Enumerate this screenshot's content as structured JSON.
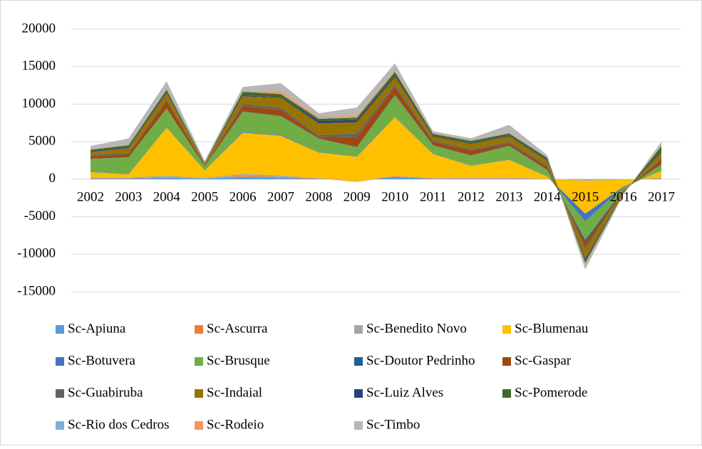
{
  "chart_data": {
    "type": "area",
    "stacked": true,
    "categories": [
      "2002",
      "2003",
      "2004",
      "2005",
      "2006",
      "2007",
      "2008",
      "2009",
      "2010",
      "2011",
      "2012",
      "2013",
      "2014",
      "2015",
      "2016",
      "2017"
    ],
    "ylim": [
      -15000,
      20000
    ],
    "yticks": [
      -15000,
      -10000,
      -5000,
      0,
      5000,
      10000,
      15000,
      20000
    ],
    "grid": true,
    "legend": "bottom",
    "series": [
      {
        "name": "Sc-Apiuna",
        "color": "#5b9bd5",
        "values": [
          100,
          100,
          200,
          100,
          300,
          200,
          50,
          50,
          300,
          50,
          50,
          50,
          20,
          -50,
          -20,
          50
        ]
      },
      {
        "name": "Sc-Ascurra",
        "color": "#ed7d31",
        "values": [
          50,
          50,
          50,
          20,
          100,
          100,
          50,
          -400,
          100,
          50,
          50,
          50,
          20,
          -50,
          -20,
          50
        ]
      },
      {
        "name": "Sc-Benedito Novo",
        "color": "#a5a5a5",
        "values": [
          100,
          100,
          200,
          50,
          300,
          200,
          50,
          50,
          50,
          50,
          100,
          100,
          20,
          -100,
          -50,
          100
        ]
      },
      {
        "name": "Sc-Blumenau",
        "color": "#ffc000",
        "values": [
          700,
          400,
          6400,
          1000,
          5500,
          5300,
          3400,
          3300,
          7800,
          3200,
          1600,
          2400,
          300,
          -4400,
          -900,
          900
        ]
      },
      {
        "name": "Sc-Botuvera",
        "color": "#4472c4",
        "values": [
          50,
          50,
          50,
          20,
          100,
          100,
          50,
          50,
          50,
          50,
          50,
          50,
          50,
          -1000,
          -100,
          50
        ]
      },
      {
        "name": "Sc-Brusque",
        "color": "#70ad47",
        "values": [
          1700,
          2200,
          2500,
          500,
          2700,
          2500,
          1800,
          1200,
          2900,
          1100,
          1300,
          1800,
          800,
          -2500,
          -300,
          800
        ]
      },
      {
        "name": "Sc-Doutor Pedrinho",
        "color": "#255e91",
        "values": [
          30,
          30,
          50,
          20,
          50,
          50,
          50,
          50,
          100,
          50,
          50,
          50,
          50,
          -300,
          -50,
          50
        ]
      },
      {
        "name": "Sc-Gaspar",
        "color": "#9e480e",
        "values": [
          300,
          400,
          1000,
          100,
          700,
          800,
          200,
          1300,
          1000,
          400,
          600,
          300,
          400,
          -700,
          -100,
          600
        ]
      },
      {
        "name": "Sc-Guabiruba",
        "color": "#636363",
        "values": [
          200,
          200,
          200,
          50,
          300,
          300,
          200,
          500,
          300,
          200,
          200,
          200,
          200,
          -300,
          -50,
          200
        ]
      },
      {
        "name": "Sc-Indaial",
        "color": "#997300",
        "values": [
          400,
          600,
          800,
          200,
          1000,
          1300,
          1600,
          1500,
          1000,
          500,
          700,
          700,
          600,
          -1200,
          -200,
          700
        ]
      },
      {
        "name": "Sc-Luiz Alves",
        "color": "#264478",
        "values": [
          100,
          100,
          100,
          30,
          100,
          100,
          300,
          300,
          200,
          100,
          100,
          100,
          100,
          -200,
          -50,
          100
        ]
      },
      {
        "name": "Sc-Pomerode",
        "color": "#43682b",
        "values": [
          200,
          300,
          400,
          100,
          500,
          400,
          300,
          300,
          500,
          300,
          300,
          300,
          300,
          -400,
          -100,
          800
        ]
      },
      {
        "name": "Sc-Rio dos Cedros",
        "color": "#7cafdd",
        "values": [
          50,
          50,
          50,
          20,
          50,
          50,
          50,
          50,
          50,
          50,
          50,
          50,
          20,
          -50,
          -20,
          50
        ]
      },
      {
        "name": "Sc-Rodeio",
        "color": "#f1975a",
        "values": [
          50,
          50,
          50,
          20,
          100,
          300,
          200,
          200,
          200,
          100,
          100,
          100,
          20,
          -100,
          -20,
          50
        ]
      },
      {
        "name": "Sc-Timbo",
        "color": "#b7b7b7",
        "values": [
          400,
          800,
          1000,
          200,
          500,
          1100,
          500,
          1100,
          900,
          200,
          200,
          1000,
          300,
          -700,
          -100,
          500
        ]
      }
    ]
  }
}
